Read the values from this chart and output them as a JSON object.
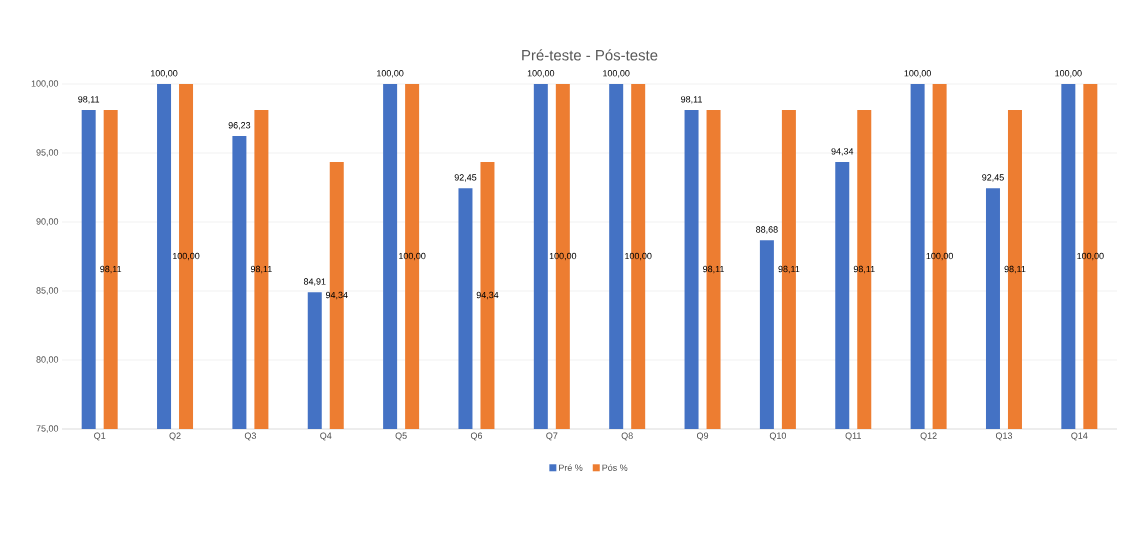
{
  "chart_data": {
    "type": "bar",
    "title": "Pré-teste - Pós-teste",
    "categories": [
      "Q1",
      "Q2",
      "Q3",
      "Q4",
      "Q5",
      "Q6",
      "Q7",
      "Q8",
      "Q9",
      "Q10",
      "Q11",
      "Q12",
      "Q13",
      "Q14"
    ],
    "series": [
      {
        "name": "Pré %",
        "color": "#4472c4",
        "values": [
          98.11,
          100,
          96.23,
          84.91,
          100,
          92.45,
          100,
          100,
          98.11,
          88.68,
          94.34,
          100,
          92.45,
          100
        ],
        "value_labels": [
          "98,11",
          "100,00",
          "96,23",
          "84,91",
          "100,00",
          "92,45",
          "100,00",
          "100,00",
          "98,11",
          "88,68",
          "94,34",
          "100,00",
          "92,45",
          "100,00"
        ]
      },
      {
        "name": "Pós %",
        "color": "#ed7d31",
        "values": [
          98.11,
          100,
          98.11,
          94.34,
          100,
          94.34,
          100,
          100,
          98.11,
          98.11,
          98.11,
          100,
          98.11,
          100
        ],
        "value_labels": [
          "98,11",
          "100,00",
          "98,11",
          "94,34",
          "100,00",
          "94,34",
          "100,00",
          "100,00",
          "98,11",
          "98,11",
          "98,11",
          "100,00",
          "98,11",
          "100,00"
        ]
      }
    ],
    "ylim": [
      75,
      100
    ],
    "yticks": [
      {
        "value": 75,
        "label": "75,00"
      },
      {
        "value": 80,
        "label": "80,00"
      },
      {
        "value": 85,
        "label": "85,00"
      },
      {
        "value": 90,
        "label": "90,00"
      },
      {
        "value": 95,
        "label": "95,00"
      },
      {
        "value": 100,
        "label": "100,00"
      }
    ],
    "grid": "y",
    "legend": "bottom"
  }
}
